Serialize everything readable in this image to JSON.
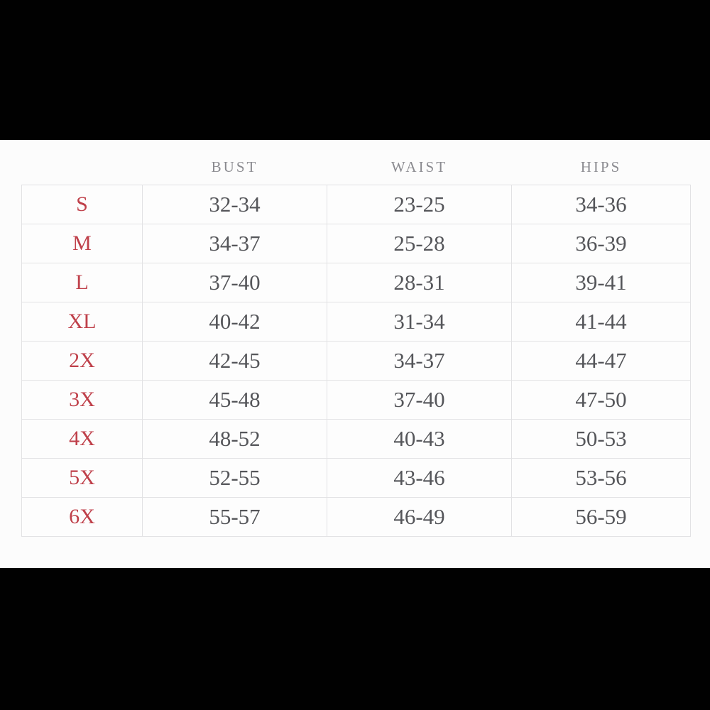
{
  "chart_data": {
    "type": "table",
    "columns": [
      "",
      "BUST",
      "WAIST",
      "HIPS"
    ],
    "rows": [
      {
        "size": "S",
        "bust": "32-34",
        "waist": "23-25",
        "hips": "34-36"
      },
      {
        "size": "M",
        "bust": "34-37",
        "waist": "25-28",
        "hips": "36-39"
      },
      {
        "size": "L",
        "bust": "37-40",
        "waist": "28-31",
        "hips": "39-41"
      },
      {
        "size": "XL",
        "bust": "40-42",
        "waist": "31-34",
        "hips": "41-44"
      },
      {
        "size": "2X",
        "bust": "42-45",
        "waist": "34-37",
        "hips": "44-47"
      },
      {
        "size": "3X",
        "bust": "45-48",
        "waist": "37-40",
        "hips": "47-50"
      },
      {
        "size": "4X",
        "bust": "48-52",
        "waist": "40-43",
        "hips": "50-53"
      },
      {
        "size": "5X",
        "bust": "52-55",
        "waist": "43-46",
        "hips": "53-56"
      },
      {
        "size": "6X",
        "bust": "55-57",
        "waist": "46-49",
        "hips": "56-59"
      }
    ]
  },
  "colors": {
    "size_label_red": "#bf404a",
    "header_gray": "#8b8b90",
    "value_gray": "#55565a",
    "grid_border": "#e2e2e4",
    "panel_background": "#fcfcfc",
    "letterbox_black": "#010101"
  }
}
